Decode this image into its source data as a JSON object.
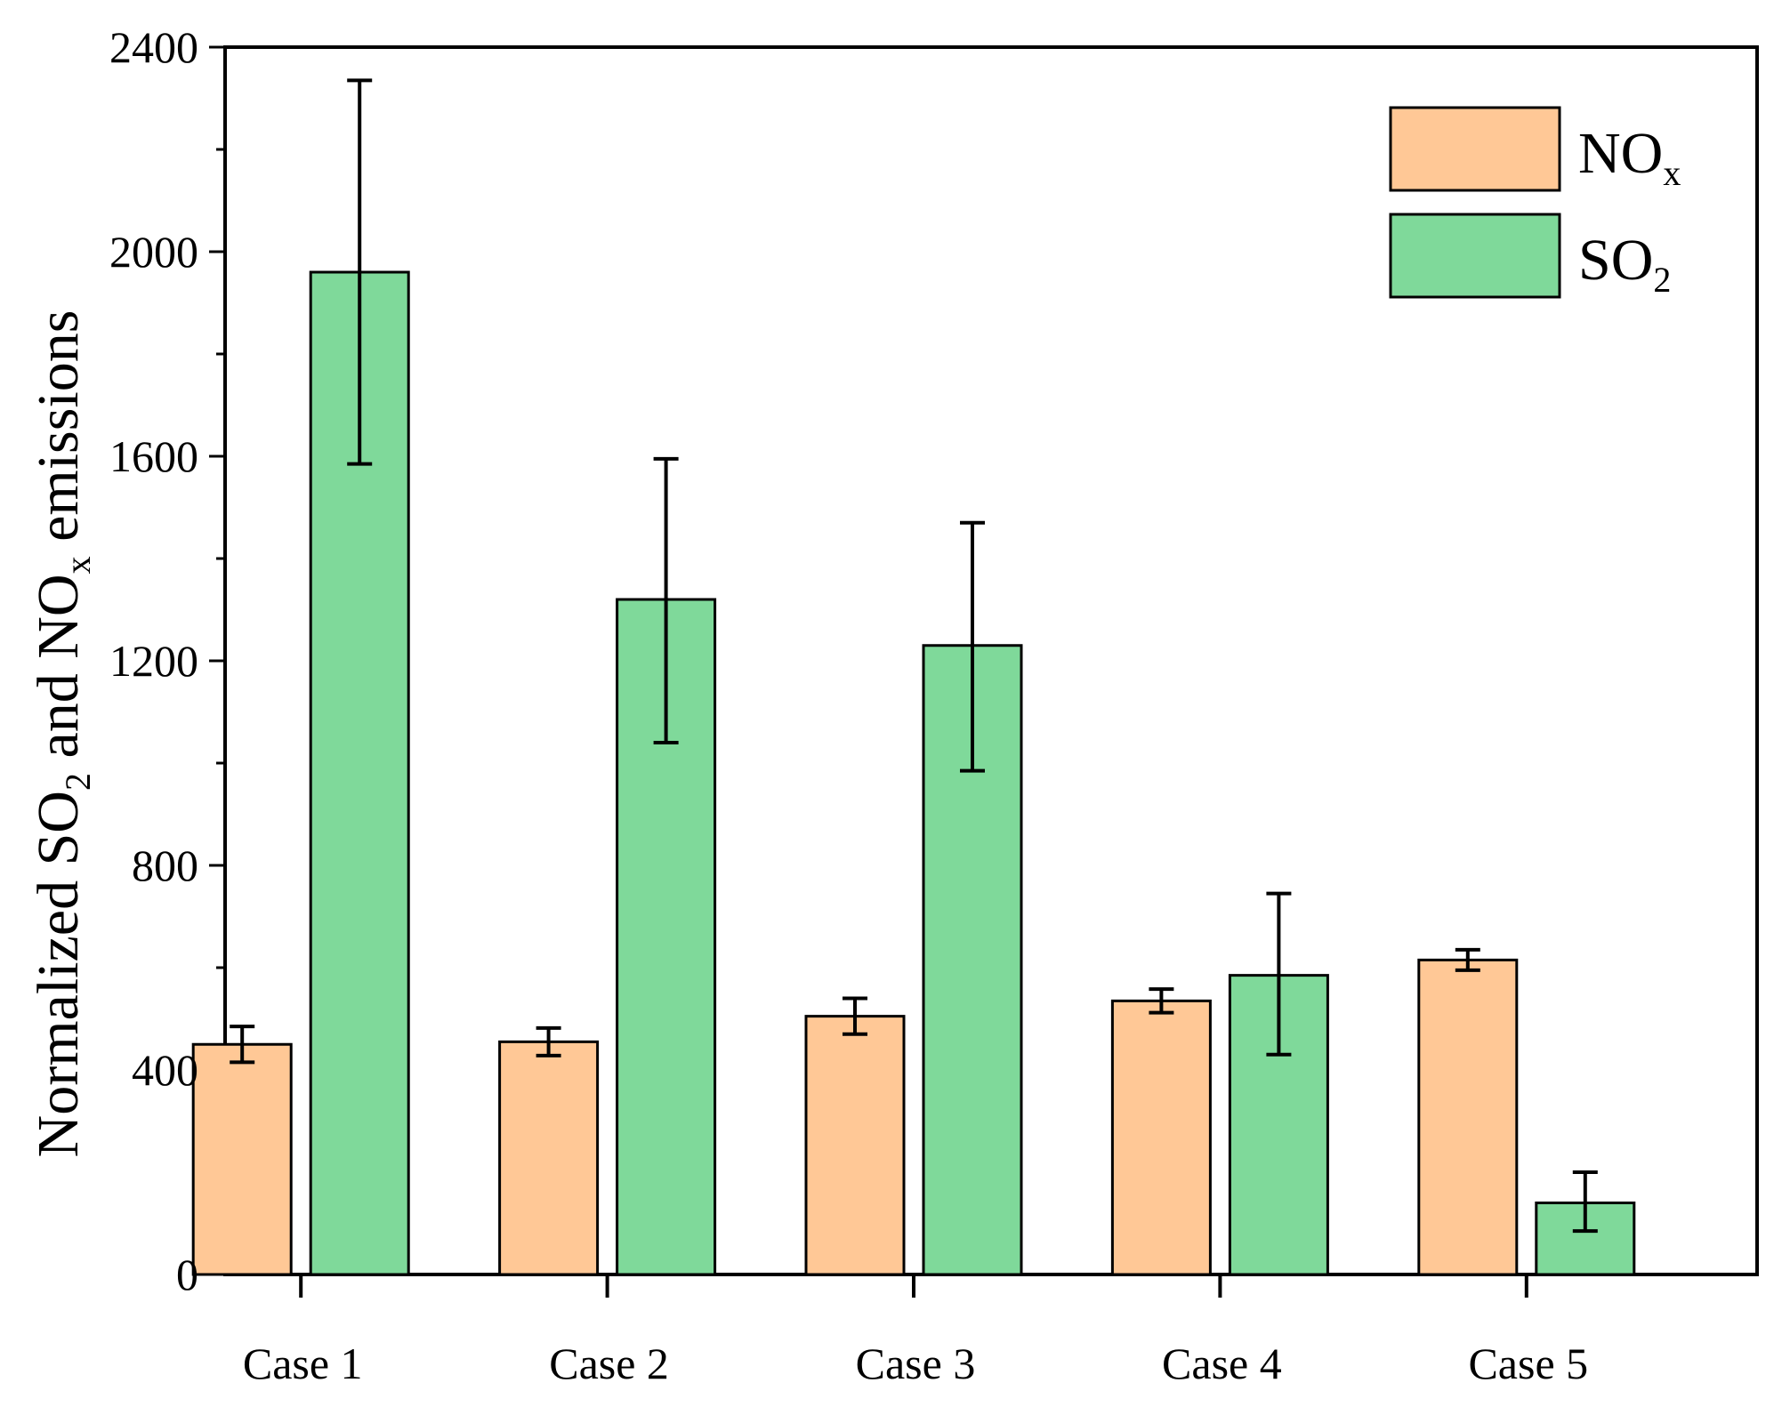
{
  "chart_data": {
    "type": "bar",
    "categories": [
      "Case 1",
      "Case 2",
      "Case 3",
      "Case 4",
      "Case 5"
    ],
    "series": [
      {
        "name": "NOx",
        "label_main": "NO",
        "label_sub": "x",
        "color": "#FFC896",
        "values": [
          450,
          455,
          505,
          535,
          615
        ],
        "err_low": [
          415,
          428,
          470,
          512,
          595
        ],
        "err_high": [
          485,
          482,
          540,
          558,
          635
        ]
      },
      {
        "name": "SO2",
        "label_main": "SO",
        "label_sub": "2",
        "color": "#7FD99A",
        "values": [
          1960,
          1320,
          1230,
          585,
          140
        ],
        "err_low": [
          1585,
          1040,
          985,
          430,
          85
        ],
        "err_high": [
          2335,
          1595,
          1470,
          745,
          200
        ]
      }
    ],
    "ylabel": {
      "part1": "Normalized SO",
      "sub1": "2",
      "part2": " and NO",
      "sub2": "x",
      "part3": " emissions"
    },
    "yticks": [
      "0",
      "400",
      "800",
      "1200",
      "1600",
      "2000",
      "2400"
    ],
    "ylim": [
      0,
      2400
    ],
    "legend_position": "top-right",
    "grid": false
  }
}
